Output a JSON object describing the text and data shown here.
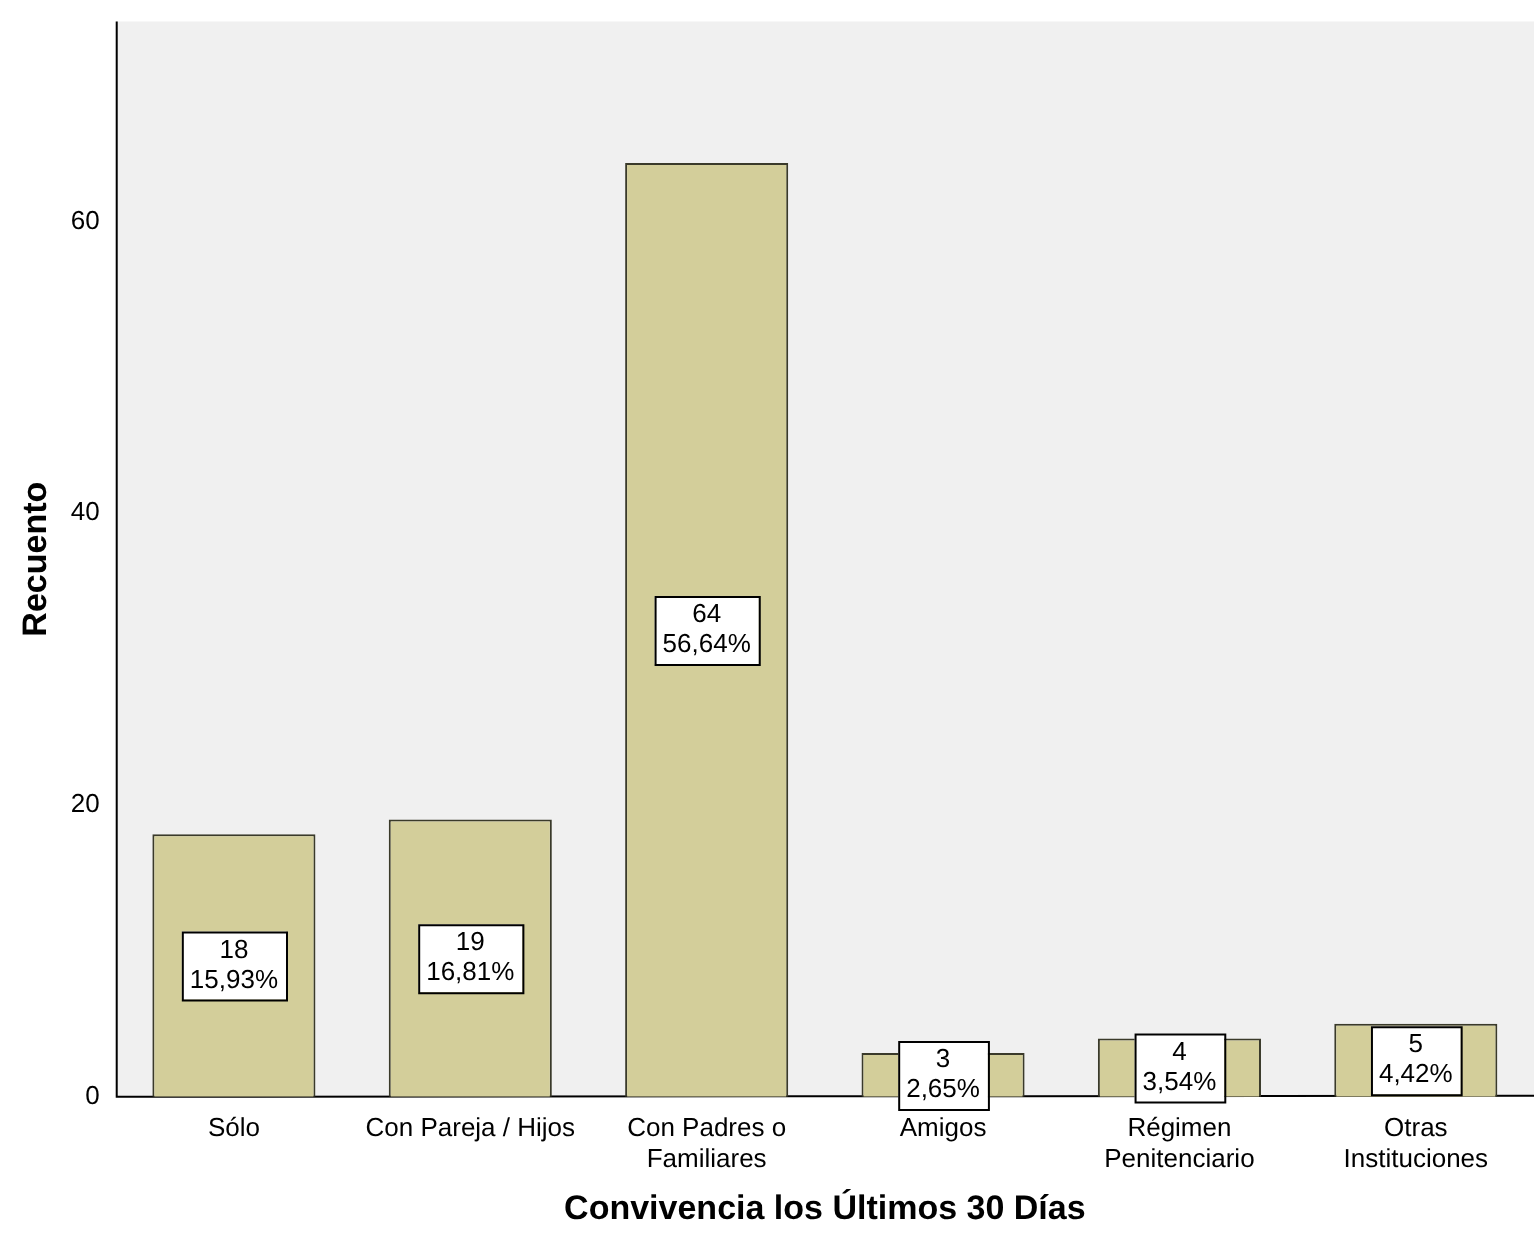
{
  "chart_data": {
    "type": "bar",
    "xlabel": "Convivencia los Últimos 30 Días",
    "ylabel": "Recuento",
    "categories": [
      "Sólo",
      "Con Pareja / Hijos",
      "Con Padres o Familiares",
      "Amigos",
      "Régimen Penitenciario",
      "Otras Instituciones"
    ],
    "values": [
      18,
      19,
      64,
      3,
      4,
      5
    ],
    "color": "#d3ce9a",
    "value_labels": [
      "18\n15,93%",
      "19\n16,81%",
      "64\n56,64%",
      "3\n2,65%",
      "4\n3,54%",
      "5\n4,42%"
    ],
    "ylim": [
      0,
      73.7
    ],
    "yticks": [
      0,
      20,
      40,
      60
    ],
    "grid": false,
    "legend": false
  }
}
